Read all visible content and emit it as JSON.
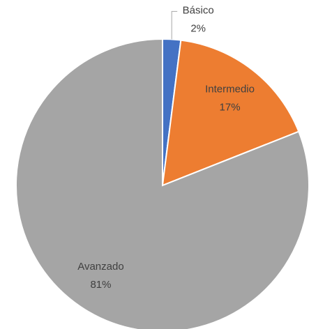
{
  "chart_data": {
    "type": "pie",
    "categories": [
      "Básico",
      "Intermedio",
      "Avanzado"
    ],
    "values": [
      2,
      17,
      81
    ],
    "value_labels": [
      "2%",
      "17%",
      "81%"
    ],
    "colors": [
      "#4472c4",
      "#ed7d31",
      "#a5a5a5"
    ]
  }
}
